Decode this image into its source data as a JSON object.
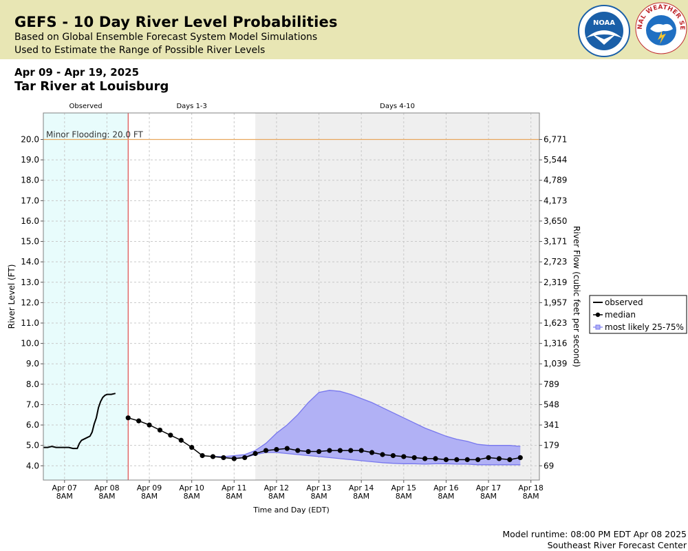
{
  "header": {
    "title": "GEFS - 10 Day River Level Probabilities",
    "subtitle_1": "Based on Global Ensemble Forecast System Model Simulations",
    "subtitle_2": "Used to Estimate the Range of Possible River Levels",
    "date_range": "Apr 09 - Apr 19, 2025",
    "location": "Tar River at Louisburg"
  },
  "logos": {
    "noaa_text": "NOAA",
    "nws_text": "NATIONAL WEATHER SERVICE",
    "noaa_color": "#1a5fa8",
    "nws_color": "#c0282d"
  },
  "footer": {
    "runtime": "Model runtime: 08:00 PM EDT Apr 08 2025",
    "center": "Southeast River Forecast Center"
  },
  "chart_data": {
    "type": "line",
    "xlabel": "Time and Day (EDT)",
    "ylabel": "River Level (FT)",
    "y2label": "River Flow (cubic feet per second)",
    "ylim": [
      3.3,
      21.3
    ],
    "x_range": [
      -1.5,
      10.2
    ],
    "x_tick_days": [
      -1,
      0,
      1,
      2,
      3,
      4,
      5,
      6,
      7,
      8,
      9,
      10
    ],
    "x_ticks": [
      "Apr 07",
      "Apr 08",
      "Apr 09",
      "Apr 10",
      "Apr 11",
      "Apr 12",
      "Apr 13",
      "Apr 14",
      "Apr 15",
      "Apr 16",
      "Apr 17",
      "Apr 18"
    ],
    "x_tick_sublabel": "8AM",
    "y_ticks": [
      4.0,
      5.0,
      6.0,
      7.0,
      8.0,
      9.0,
      10.0,
      11.0,
      12.0,
      13.0,
      14.0,
      15.0,
      16.0,
      17.0,
      18.0,
      19.0,
      20.0
    ],
    "y_tick_labels": [
      "4.0",
      "5.0",
      "6.0",
      "7.0",
      "8.0",
      "9.0",
      "10.0",
      "11.0",
      "12.0",
      "13.0",
      "14.0",
      "15.0",
      "16.0",
      "17.0",
      "18.0",
      "19.0",
      "20.0"
    ],
    "y2_ticks": [
      4.0,
      5.0,
      6.0,
      7.0,
      8.0,
      9.0,
      10.0,
      11.0,
      12.0,
      13.0,
      14.0,
      15.0,
      16.0,
      17.0,
      18.0,
      19.0,
      20.0
    ],
    "y2_labels": [
      "69",
      "179",
      "341",
      "548",
      "789",
      "1,039",
      "1,316",
      "1,623",
      "1,957",
      "2,319",
      "2,723",
      "3,171",
      "3,650",
      "4,173",
      "4,789",
      "5,544",
      "6,771"
    ],
    "grid": true,
    "legend_placement": "right",
    "regions": [
      {
        "label": "Observed",
        "x_start": -1.5,
        "x_end": 0.5,
        "color": "#e8fcfc"
      },
      {
        "label": "Days 1-3",
        "x_start": 0.5,
        "x_end": 3.5,
        "color": "#ffffff"
      },
      {
        "label": "Days 4-10",
        "x_start": 3.5,
        "x_end": 10.2,
        "color": "#efefef"
      }
    ],
    "forecast_start_x": 0.5,
    "threshold": {
      "label": "Minor Flooding: 20.0 FT",
      "value": 20.0,
      "color": "#e8a65c"
    },
    "colors": {
      "observed": "#000000",
      "median": "#000000",
      "band_fill": "#b1b1f5",
      "band_edge": "#7777ee",
      "forecast_line": "#d62728"
    },
    "series": [
      {
        "name": "observed",
        "x": [
          -1.5,
          -1.4,
          -1.3,
          -1.2,
          -1.1,
          -1.0,
          -0.9,
          -0.8,
          -0.7,
          -0.65,
          -0.6,
          -0.5,
          -0.4,
          -0.35,
          -0.3,
          -0.25,
          -0.2,
          -0.15,
          -0.1,
          -0.05,
          0.0,
          0.1,
          0.2
        ],
        "y": [
          4.9,
          4.9,
          4.95,
          4.9,
          4.9,
          4.9,
          4.9,
          4.85,
          4.85,
          5.1,
          5.25,
          5.35,
          5.45,
          5.65,
          6.05,
          6.35,
          6.85,
          7.15,
          7.35,
          7.45,
          7.5,
          7.5,
          7.55
        ]
      },
      {
        "name": "median",
        "x": [
          0.5,
          0.75,
          1.0,
          1.25,
          1.5,
          1.75,
          2.0,
          2.25,
          2.5,
          2.75,
          3.0,
          3.25,
          3.5,
          3.75,
          4.0,
          4.25,
          4.5,
          4.75,
          5.0,
          5.25,
          5.5,
          5.75,
          6.0,
          6.25,
          6.5,
          6.75,
          7.0,
          7.25,
          7.5,
          7.75,
          8.0,
          8.25,
          8.5,
          8.75,
          9.0,
          9.25,
          9.5,
          9.75
        ],
        "y": [
          6.35,
          6.2,
          6.0,
          5.75,
          5.5,
          5.25,
          4.9,
          4.5,
          4.45,
          4.4,
          4.35,
          4.4,
          4.6,
          4.75,
          4.8,
          4.85,
          4.75,
          4.7,
          4.7,
          4.75,
          4.75,
          4.75,
          4.75,
          4.65,
          4.55,
          4.5,
          4.45,
          4.4,
          4.35,
          4.35,
          4.3,
          4.3,
          4.3,
          4.3,
          4.4,
          4.35,
          4.3,
          4.4
        ]
      },
      {
        "name": "most likely 25-75%",
        "x": [
          2.5,
          2.75,
          3.0,
          3.25,
          3.5,
          3.75,
          4.0,
          4.25,
          4.5,
          4.75,
          5.0,
          5.25,
          5.5,
          5.75,
          6.0,
          6.25,
          6.5,
          6.75,
          7.0,
          7.25,
          7.5,
          7.75,
          8.0,
          8.25,
          8.5,
          8.75,
          9.0,
          9.25,
          9.5,
          9.75
        ],
        "upper": [
          4.45,
          4.45,
          4.5,
          4.55,
          4.75,
          5.1,
          5.6,
          6.0,
          6.5,
          7.1,
          7.6,
          7.7,
          7.65,
          7.5,
          7.3,
          7.1,
          6.85,
          6.6,
          6.35,
          6.1,
          5.85,
          5.65,
          5.45,
          5.3,
          5.2,
          5.05,
          5.0,
          5.0,
          5.0,
          4.95
        ],
        "lower": [
          4.45,
          4.4,
          4.35,
          4.4,
          4.55,
          4.65,
          4.65,
          4.6,
          4.55,
          4.5,
          4.45,
          4.4,
          4.35,
          4.3,
          4.25,
          4.2,
          4.15,
          4.12,
          4.1,
          4.1,
          4.08,
          4.1,
          4.1,
          4.08,
          4.08,
          4.05,
          4.05,
          4.05,
          4.05,
          4.05
        ]
      }
    ],
    "legend": [
      "observed",
      "median",
      "most likely 25-75%"
    ]
  }
}
